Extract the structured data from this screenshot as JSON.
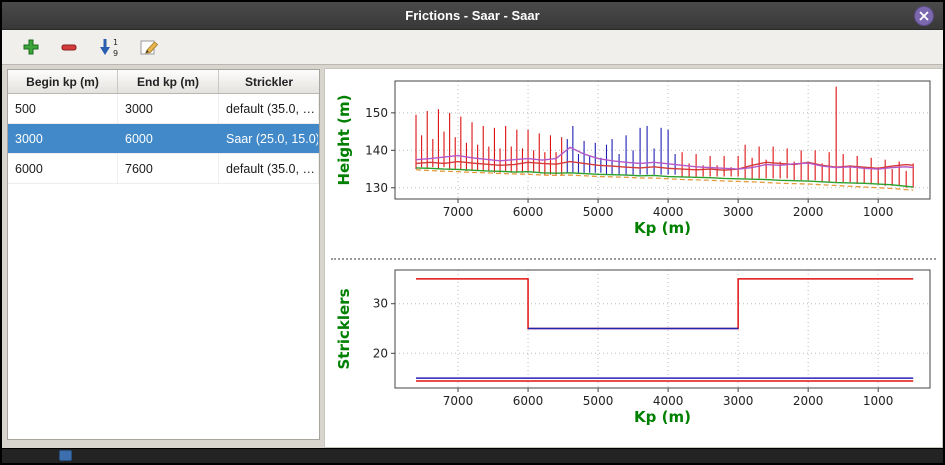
{
  "window": {
    "title": "Frictions - Saar - Saar"
  },
  "colors": {
    "selection_blue": "#4189c9",
    "axis_label_green": "#008000",
    "spike_red": "#dd1111",
    "spike_blue": "#1f1fb4"
  },
  "toolbar": {
    "buttons": [
      {
        "label": "add"
      },
      {
        "label": "remove"
      },
      {
        "label": "sort"
      },
      {
        "label": "edit"
      }
    ]
  },
  "table": {
    "columns": [
      "Begin kp (m)",
      "End kp (m)",
      "Strickler"
    ],
    "rows": [
      {
        "begin": "500",
        "end": "3000",
        "strickler": "default (35.0, …",
        "selected": false
      },
      {
        "begin": "3000",
        "end": "6000",
        "strickler": "Saar (25.0, 15.0)",
        "selected": true
      },
      {
        "begin": "6000",
        "end": "7600",
        "strickler": "default (35.0, …",
        "selected": false
      }
    ]
  },
  "chart_data": [
    {
      "type": "line",
      "title": "",
      "xlabel": "Kp (m)",
      "ylabel": "Height (m)",
      "xlim": [
        7900,
        260
      ],
      "ylim": [
        127,
        158.5
      ],
      "xticks": [
        7000,
        6000,
        5000,
        4000,
        3000,
        2000,
        1000
      ],
      "yticks": [
        130,
        140,
        150
      ],
      "grid": true,
      "x_axis_reversed": true,
      "errorbars": [
        {
          "name": "cross-section-range-red",
          "color": "#dd1111",
          "points": [
            [
              7600,
              135,
              149.5
            ],
            [
              7520,
              135.5,
              144
            ],
            [
              7440,
              135,
              150.5
            ],
            [
              7360,
              135.5,
              143
            ],
            [
              7280,
              135,
              151
            ],
            [
              7200,
              135.5,
              145
            ],
            [
              7120,
              135,
              150
            ],
            [
              7040,
              135,
              143.5
            ],
            [
              6960,
              135,
              149
            ],
            [
              6880,
              134.5,
              142
            ],
            [
              6800,
              134.5,
              147.5
            ],
            [
              6720,
              134.5,
              141.5
            ],
            [
              6640,
              134.5,
              146.5
            ],
            [
              6560,
              134.5,
              141
            ],
            [
              6480,
              134,
              146
            ],
            [
              6400,
              134,
              140.5
            ],
            [
              6320,
              134.5,
              146.5
            ],
            [
              6240,
              134,
              141
            ],
            [
              6160,
              134,
              145.5
            ],
            [
              6080,
              134,
              140.5
            ],
            [
              6000,
              134,
              145.5
            ],
            [
              5920,
              134,
              140
            ],
            [
              5840,
              134,
              144.5
            ],
            [
              5760,
              133.5,
              139.5
            ],
            [
              5680,
              133.5,
              144
            ],
            [
              5600,
              133.5,
              139.5
            ],
            [
              5520,
              133.5,
              143.5
            ],
            [
              3800,
              133,
              139.5
            ],
            [
              3700,
              133,
              136.5
            ],
            [
              3600,
              133,
              139
            ],
            [
              3500,
              133,
              136
            ],
            [
              3400,
              133,
              138.5
            ],
            [
              3300,
              133,
              136
            ],
            [
              3200,
              133,
              138.5
            ],
            [
              3100,
              133,
              135.5
            ],
            [
              3000,
              133,
              138.5
            ],
            [
              2900,
              132.5,
              141.5
            ],
            [
              2800,
              132.5,
              138
            ],
            [
              2700,
              132.5,
              141
            ],
            [
              2600,
              132.5,
              137.5
            ],
            [
              2500,
              132.5,
              141
            ],
            [
              2400,
              132.5,
              137
            ],
            [
              2300,
              132.5,
              140.5
            ],
            [
              2200,
              132,
              137
            ],
            [
              2100,
              132,
              140
            ],
            [
              2000,
              132,
              136.5
            ],
            [
              1900,
              132,
              140
            ],
            [
              1800,
              131.5,
              136.5
            ],
            [
              1700,
              131.5,
              139.5
            ],
            [
              1600,
              131.5,
              157
            ],
            [
              1500,
              131.5,
              139
            ],
            [
              1400,
              131.5,
              136
            ],
            [
              1300,
              131,
              138.5
            ],
            [
              1200,
              131,
              135.5
            ],
            [
              1100,
              131,
              138
            ],
            [
              1000,
              131,
              135.5
            ],
            [
              900,
              130.5,
              137.5
            ],
            [
              800,
              130.5,
              135
            ],
            [
              700,
              130.5,
              137
            ],
            [
              600,
              130,
              134.5
            ],
            [
              500,
              130,
              136.5
            ]
          ]
        },
        {
          "name": "cross-section-range-blue",
          "color": "#1f1fb4",
          "points": [
            [
              5440,
              134,
              143
            ],
            [
              5360,
              134,
              146.5
            ],
            [
              5280,
              134,
              139
            ],
            [
              5200,
              134,
              142.5
            ],
            [
              5120,
              134,
              138.5
            ],
            [
              5040,
              134,
              142
            ],
            [
              4960,
              134,
              138
            ],
            [
              4880,
              133.5,
              141.5
            ],
            [
              4800,
              133.5,
              143
            ],
            [
              4700,
              133.5,
              139
            ],
            [
              4600,
              133.5,
              144
            ],
            [
              4500,
              133.5,
              140
            ],
            [
              4400,
              133.5,
              146
            ],
            [
              4300,
              133.5,
              146.5
            ],
            [
              4200,
              133.5,
              140.5
            ],
            [
              4100,
              133.5,
              146
            ],
            [
              4000,
              133.5,
              145.5
            ],
            [
              3900,
              133.5,
              139
            ]
          ]
        }
      ],
      "series": [
        {
          "name": "water-level-red",
          "color": "#d43a3a",
          "width": 1.4,
          "x": [
            7600,
            7400,
            7200,
            7000,
            6800,
            6600,
            6400,
            6200,
            6000,
            5800,
            5600,
            5400,
            5200,
            5000,
            4800,
            4600,
            4400,
            4200,
            4000,
            3800,
            3600,
            3400,
            3200,
            3000,
            2800,
            2600,
            2400,
            2200,
            2000,
            1800,
            1600,
            1400,
            1200,
            1000,
            800,
            600,
            500
          ],
          "y": [
            136.5,
            136.8,
            136.5,
            137.0,
            136.6,
            136.3,
            136.0,
            136.2,
            136.8,
            136.5,
            136.3,
            137.0,
            136.5,
            136.0,
            135.8,
            135.5,
            135.3,
            135.6,
            135.2,
            135.0,
            134.8,
            135.0,
            134.7,
            135.0,
            136.0,
            136.8,
            136.5,
            136.2,
            136.8,
            136.0,
            135.5,
            135.8,
            135.5,
            135.2,
            135.8,
            136.2,
            136.0
          ]
        },
        {
          "name": "water-level-violet",
          "color": "#b358c9",
          "width": 1.4,
          "x": [
            7600,
            7400,
            7200,
            7000,
            6800,
            6600,
            6400,
            6200,
            6000,
            5800,
            5600,
            5400,
            5200,
            5000,
            4800,
            4600,
            4400,
            4200,
            4000,
            3800,
            3600,
            3400,
            3200,
            3000,
            2800,
            2600,
            2400,
            2200,
            2000,
            1800,
            1600,
            1400,
            1200,
            1000,
            800,
            600,
            500
          ],
          "y": [
            137.5,
            137.8,
            138.2,
            138.6,
            138.0,
            137.6,
            137.2,
            137.5,
            137.8,
            137.4,
            137.8,
            140.8,
            139.0,
            137.8,
            137.2,
            136.8,
            136.5,
            136.8,
            136.4,
            136.0,
            135.6,
            135.4,
            135.2,
            135.0,
            135.4,
            136.2,
            136.0,
            136.4,
            136.6,
            135.8,
            135.4,
            135.6,
            135.2,
            135.0,
            135.4,
            135.6,
            135.4
          ]
        },
        {
          "name": "bed-level-green",
          "color": "#2ca02c",
          "width": 1.4,
          "x": [
            7600,
            7400,
            7200,
            7000,
            6800,
            6600,
            6400,
            6200,
            6000,
            5800,
            5600,
            5400,
            5200,
            5000,
            4800,
            4600,
            4400,
            4200,
            4000,
            3800,
            3600,
            3400,
            3200,
            3000,
            2800,
            2600,
            2400,
            2200,
            2000,
            1800,
            1600,
            1400,
            1200,
            1000,
            800,
            600,
            500
          ],
          "y": [
            135.3,
            135.2,
            135.0,
            134.9,
            134.7,
            134.5,
            134.4,
            134.2,
            134.3,
            134.0,
            133.9,
            134.0,
            133.8,
            133.6,
            133.5,
            133.4,
            133.2,
            133.3,
            133.0,
            132.9,
            132.8,
            132.7,
            132.5,
            132.4,
            132.3,
            132.2,
            132.0,
            131.9,
            131.8,
            131.6,
            131.4,
            131.3,
            131.2,
            131.0,
            130.8,
            130.4,
            130.2
          ]
        },
        {
          "name": "bed-level-orange-dashed",
          "color": "#e59a3c",
          "width": 1.3,
          "dash": "5 3",
          "x": [
            7600,
            7400,
            7200,
            7000,
            6800,
            6600,
            6400,
            6200,
            6000,
            5800,
            5600,
            5400,
            5200,
            5000,
            4800,
            4600,
            4400,
            4200,
            4000,
            3800,
            3600,
            3400,
            3200,
            3000,
            2800,
            2600,
            2400,
            2200,
            2000,
            1800,
            1600,
            1400,
            1200,
            1000,
            800,
            600,
            500
          ],
          "y": [
            134.8,
            134.6,
            134.4,
            134.3,
            134.1,
            134.0,
            133.8,
            133.7,
            133.6,
            133.4,
            133.3,
            133.4,
            133.2,
            133.0,
            132.9,
            132.8,
            132.6,
            132.6,
            132.4,
            132.2,
            132.1,
            132.0,
            131.8,
            131.7,
            131.6,
            131.4,
            131.2,
            131.1,
            131.0,
            130.8,
            130.6,
            130.4,
            130.2,
            130.0,
            129.8,
            129.5,
            129.4
          ]
        }
      ]
    },
    {
      "type": "step",
      "title": "",
      "xlabel": "Kp (m)",
      "ylabel": "Stricklers",
      "xlim": [
        7900,
        260
      ],
      "ylim": [
        13,
        36.8
      ],
      "xticks": [
        7000,
        6000,
        5000,
        4000,
        3000,
        2000,
        1000
      ],
      "yticks": [
        20,
        30
      ],
      "grid": true,
      "x_axis_reversed": true,
      "series": [
        {
          "name": "main-channel-strickler",
          "color": "#e01010",
          "width": 1.5,
          "x": [
            7600,
            6000,
            6000,
            3000,
            3000,
            500
          ],
          "y": [
            35,
            35,
            25,
            25,
            35,
            35
          ]
        },
        {
          "name": "saar-segment-25",
          "color": "#2424b4",
          "width": 1.5,
          "x": [
            6000,
            3000
          ],
          "y": [
            25,
            25
          ]
        },
        {
          "name": "floodplain-strickler-blue",
          "color": "#2424b4",
          "width": 1.5,
          "x": [
            7600,
            500
          ],
          "y": [
            15,
            15
          ]
        },
        {
          "name": "floodplain-strickler-red",
          "color": "#e01010",
          "width": 1.5,
          "x": [
            7600,
            500
          ],
          "y": [
            14.4,
            14.4
          ]
        }
      ]
    }
  ]
}
